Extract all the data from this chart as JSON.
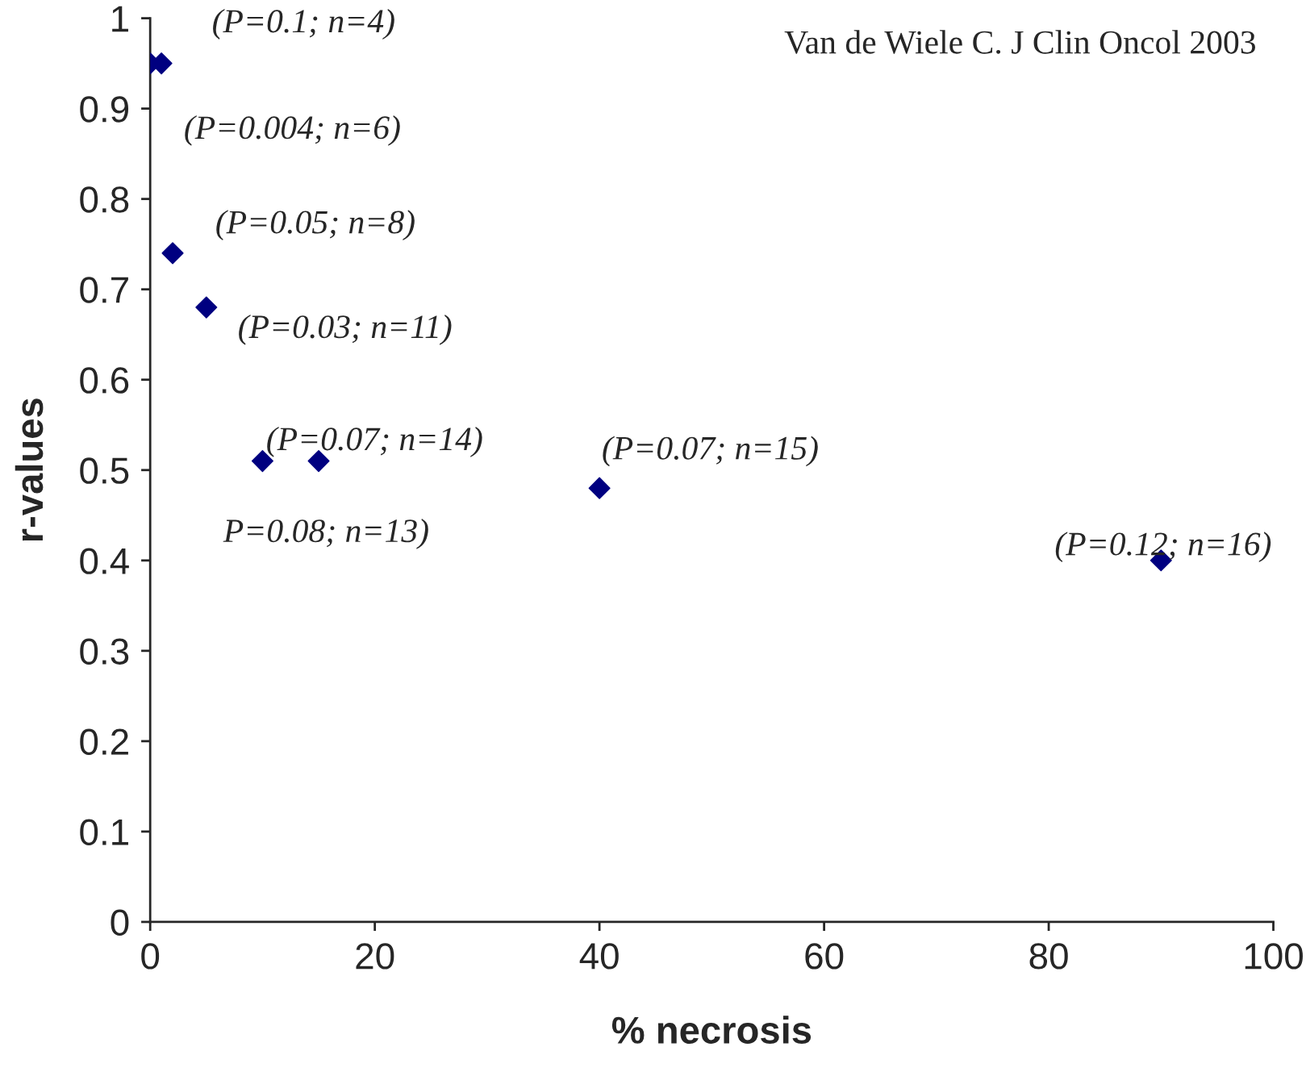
{
  "chart_data": {
    "type": "scatter",
    "xlabel": "% necrosis",
    "ylabel": "r-values",
    "x": [
      0,
      1,
      2,
      5,
      10,
      15,
      40,
      90
    ],
    "series": [
      {
        "color": "#000080",
        "values": [
          0.95,
          0.95,
          0.74,
          0.68,
          0.51,
          0.51,
          0.48,
          0.4
        ]
      }
    ],
    "marker": "diamond",
    "xlim": [
      0,
      100
    ],
    "xticks": [
      0,
      20,
      40,
      60,
      80,
      100
    ],
    "ylim": [
      0,
      1
    ],
    "yticks": [
      0,
      0.1,
      0.2,
      0.3,
      0.4,
      0.5,
      0.6,
      0.7,
      0.8,
      0.9,
      1
    ],
    "grid": false,
    "legend": false,
    "annotations": [
      {
        "text": "(P=0.1; n=4)",
        "x": 1,
        "y": 0.95
      },
      {
        "text": "(P=0.004; n=6)",
        "x": 0,
        "y": 0.95
      },
      {
        "text": "(P=0.05; n=8)",
        "x": 2,
        "y": 0.74
      },
      {
        "text": "(P=0.03; n=11)",
        "x": 5,
        "y": 0.68
      },
      {
        "text": "(P=0.07; n=14)",
        "x": 15,
        "y": 0.51
      },
      {
        "text": "P=0.08; n=13)",
        "x": 10,
        "y": 0.51
      },
      {
        "text": "(P=0.07; n=15)",
        "x": 40,
        "y": 0.48
      },
      {
        "text": "(P=0.12; n=16)",
        "x": 90,
        "y": 0.4
      },
      "Van de Wiele C. J Clin Oncol 2003"
    ]
  }
}
